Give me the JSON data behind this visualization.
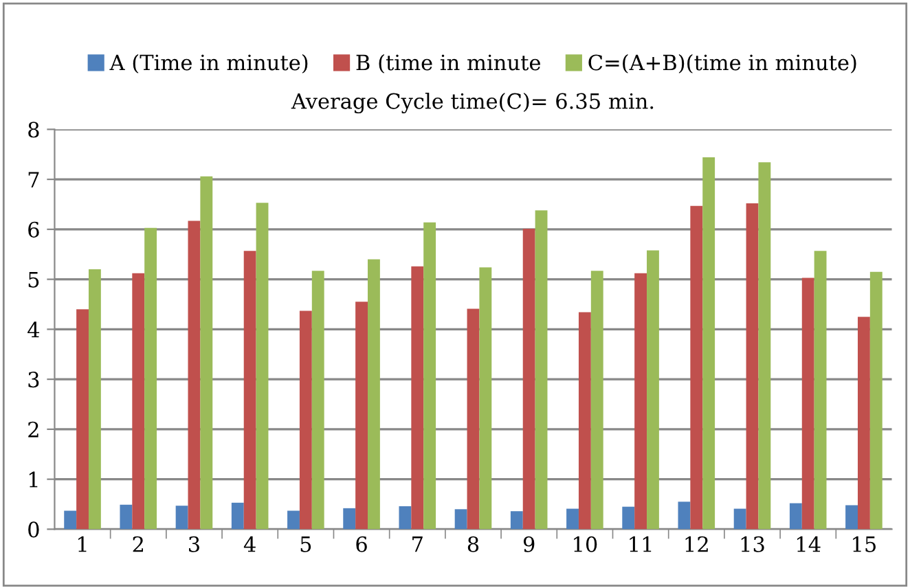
{
  "chart_data": {
    "type": "bar",
    "categories": [
      "1",
      "2",
      "3",
      "4",
      "5",
      "6",
      "7",
      "8",
      "9",
      "10",
      "11",
      "12",
      "13",
      "14",
      "15"
    ],
    "series": [
      {
        "name": "A (Time in minute)",
        "color": "#4f81bd",
        "values": [
          0.37,
          0.49,
          0.47,
          0.53,
          0.37,
          0.42,
          0.46,
          0.4,
          0.36,
          0.41,
          0.45,
          0.55,
          0.41,
          0.52,
          0.48
        ]
      },
      {
        "name": "B (time in minute",
        "color": "#c0504d",
        "values": [
          4.4,
          5.12,
          6.17,
          5.57,
          4.37,
          4.55,
          5.26,
          4.41,
          6.01,
          4.34,
          5.12,
          6.47,
          6.52,
          5.03,
          4.25
        ]
      },
      {
        "name": "C=(A+B)(time in minute)",
        "color": "#9bbb59",
        "values": [
          5.2,
          6.03,
          7.06,
          6.53,
          5.17,
          5.4,
          6.14,
          5.24,
          6.38,
          5.17,
          5.58,
          7.44,
          7.34,
          5.57,
          5.15
        ]
      }
    ],
    "annotations": [
      "Average Cycle time(C)= 6.35 min."
    ],
    "ylim": [
      0,
      8
    ],
    "yticks": [
      0,
      1,
      2,
      3,
      4,
      5,
      6,
      7,
      8
    ],
    "grid": "y",
    "legend": "top"
  }
}
